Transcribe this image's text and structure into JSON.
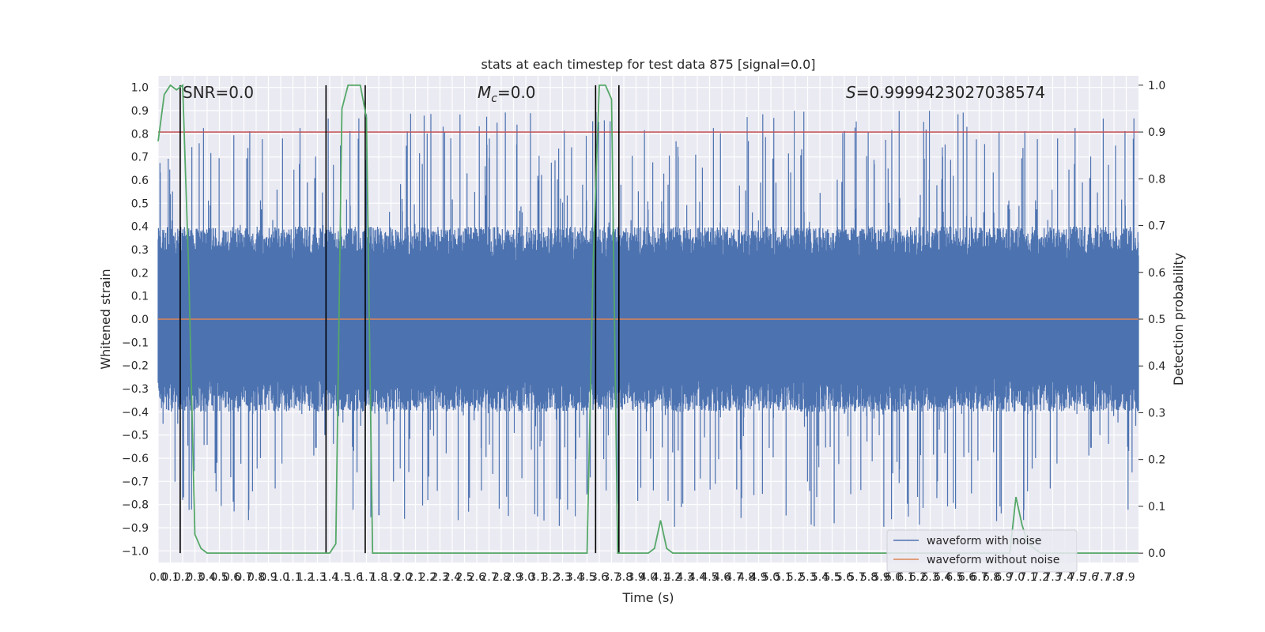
{
  "chart_data": {
    "type": "line",
    "title": "stats at each timestep for test data 875 [signal=0.0]",
    "xlabel": "Time (s)",
    "ylabel": "Whitened strain",
    "y2label": "Detection probability",
    "xlim": [
      0.0,
      8.0
    ],
    "ylim": [
      -1.05,
      1.05
    ],
    "y2lim": [
      -0.02,
      1.02
    ],
    "x_ticks": [
      "0.0",
      "0.1",
      "0.2",
      "0.3",
      "0.4",
      "0.5",
      "0.6",
      "0.7",
      "0.8",
      "0.9",
      "1.0",
      "1.1",
      "1.2",
      "1.3",
      "1.4",
      "1.5",
      "1.6",
      "1.7",
      "1.8",
      "1.9",
      "2.0",
      "2.1",
      "2.2",
      "2.3",
      "2.4",
      "2.5",
      "2.6",
      "2.7",
      "2.8",
      "2.9",
      "3.0",
      "3.1",
      "3.2",
      "3.3",
      "3.4",
      "3.5",
      "3.6",
      "3.7",
      "3.8",
      "3.9",
      "4.0",
      "4.1",
      "4.2",
      "4.3",
      "4.4",
      "4.5",
      "4.6",
      "4.7",
      "4.8",
      "4.9",
      "5.0",
      "5.1",
      "5.2",
      "5.3",
      "5.4",
      "5.5",
      "5.6",
      "5.7",
      "5.8",
      "5.9",
      "6.0",
      "6.1",
      "6.2",
      "6.3",
      "6.4",
      "6.5",
      "6.6",
      "6.7",
      "6.8",
      "6.9",
      "7.0",
      "7.1",
      "7.2",
      "7.3",
      "7.4",
      "7.5",
      "7.6",
      "7.7",
      "7.8",
      "7.9"
    ],
    "y_ticks": [
      "1.0",
      "0.9",
      "0.8",
      "0.7",
      "0.6",
      "0.5",
      "0.4",
      "0.3",
      "0.2",
      "0.1",
      "0.0",
      "-0.1",
      "-0.2",
      "-0.3",
      "-0.4",
      "-0.5",
      "-0.6",
      "-0.7",
      "-0.8",
      "-0.9",
      "-1.0"
    ],
    "y2_ticks": [
      "1.0",
      "0.9",
      "0.8",
      "0.7",
      "0.6",
      "0.5",
      "0.4",
      "0.3",
      "0.2",
      "0.1",
      "0.0"
    ],
    "annotations": {
      "snr": "SNR=0.0",
      "mc_symbol": "M",
      "mc_sub": "c",
      "mc_value": "=0.0",
      "s_symbol": "S",
      "s_value": "=0.9999423027038574"
    },
    "threshold_y2": 0.9,
    "vertical_lines_x": [
      0.18,
      1.37,
      1.69,
      3.57,
      3.76
    ],
    "noise_envelope": {
      "typical_upper": 0.4,
      "typical_lower": -0.4,
      "peak_upper": 0.9,
      "peak_lower": -0.9
    },
    "series": [
      {
        "name": "waveform with noise",
        "color": "#4c72b0"
      },
      {
        "name": "waveform without noise",
        "color": "#dd8452",
        "y_constant": 0.0
      },
      {
        "color": "#55a868",
        "axis": "y2",
        "x": [
          0.0,
          0.05,
          0.1,
          0.15,
          0.2,
          0.25,
          0.3,
          0.35,
          0.4,
          1.2,
          1.35,
          1.4,
          1.45,
          1.5,
          1.55,
          1.6,
          1.65,
          1.7,
          1.75,
          1.8,
          2.0,
          3.0,
          3.45,
          3.5,
          3.55,
          3.6,
          3.65,
          3.7,
          3.75,
          3.8,
          3.85,
          4.0,
          4.05,
          4.1,
          4.15,
          4.2,
          5.0,
          6.0,
          6.9,
          6.95,
          7.0,
          7.05,
          7.1,
          7.15,
          7.2,
          7.25,
          7.3,
          7.5,
          8.0
        ],
        "values": [
          0.88,
          0.98,
          1.0,
          0.99,
          1.0,
          0.6,
          0.04,
          0.01,
          0.0,
          0.0,
          0.0,
          0.0,
          0.02,
          0.95,
          1.0,
          1.0,
          1.0,
          0.93,
          0.0,
          0.0,
          0.0,
          0.0,
          0.0,
          0.0,
          0.62,
          1.0,
          1.0,
          0.97,
          0.0,
          0.0,
          0.0,
          0.0,
          0.01,
          0.07,
          0.01,
          0.0,
          0.0,
          0.0,
          0.0,
          0.0,
          0.12,
          0.06,
          0.02,
          0.01,
          0.0,
          0.0,
          0.0,
          0.0,
          0.0
        ]
      }
    ],
    "legend": {
      "placement": "lower-right"
    }
  }
}
